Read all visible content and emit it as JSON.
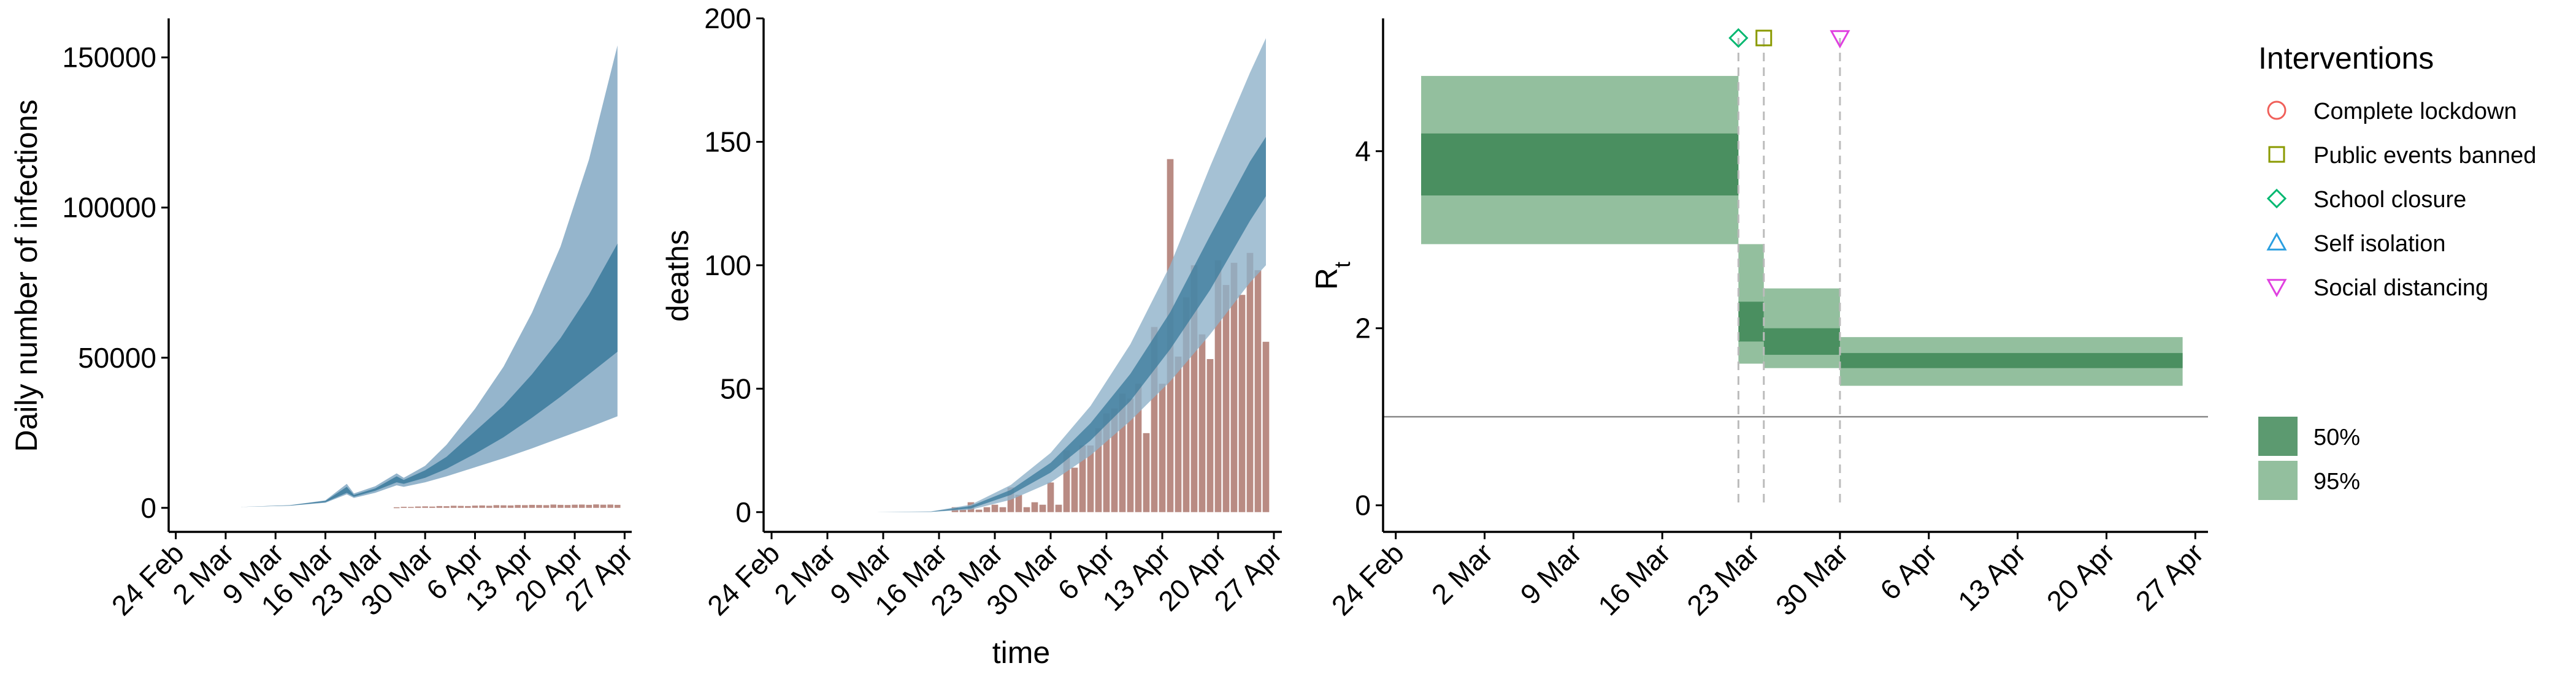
{
  "chart_data": [
    {
      "type": "area",
      "title": "",
      "xlabel": "",
      "ylabel": "Daily number of infections",
      "x_tick_labels": [
        "24 Feb",
        "2 Mar",
        "9 Mar",
        "16 Mar",
        "23 Mar",
        "30 Mar",
        "6 Apr",
        "13 Apr",
        "20 Apr",
        "27 Apr"
      ],
      "xlim_days": [
        -1,
        64
      ],
      "y_ticks": [
        0,
        50000,
        100000,
        150000
      ],
      "y_tick_labels": [
        "0",
        "50000",
        "100000",
        "150000"
      ],
      "ylim": [
        -8000,
        163000
      ],
      "colors": {
        "band_95": "#8fb1c9",
        "band_50": "#3f7d9e",
        "reported_bars": "#b5857c",
        "axis": "#000000"
      },
      "series": [
        {
          "kind": "band",
          "x_days": [
            2,
            9,
            16,
            21,
            24,
            25,
            28,
            31,
            32,
            35,
            38,
            42,
            46,
            50,
            54,
            58,
            62
          ],
          "lower_95": [
            0,
            300,
            700,
            1700,
            4500,
            3300,
            5000,
            7500,
            7000,
            8500,
            10500,
            13500,
            16500,
            19800,
            23300,
            26800,
            30500
          ],
          "upper_95": [
            0,
            300,
            900,
            2500,
            8000,
            4800,
            7200,
            11500,
            10000,
            14000,
            21000,
            33000,
            47000,
            65000,
            87000,
            116000,
            154000
          ],
          "lower_50": [
            0,
            300,
            750,
            1900,
            5000,
            3700,
            5700,
            8500,
            8000,
            10000,
            13000,
            18000,
            23500,
            30000,
            37000,
            44500,
            52000
          ],
          "upper_50": [
            0,
            300,
            850,
            2300,
            7000,
            4300,
            6500,
            10500,
            9300,
            12500,
            17000,
            25500,
            34000,
            44500,
            56500,
            71000,
            88000
          ]
        },
        {
          "kind": "bars",
          "name": "",
          "x_days": [
            31,
            32,
            33,
            34,
            35,
            36,
            37,
            38,
            39,
            40,
            41,
            42,
            43,
            44,
            45,
            46,
            47,
            48,
            49,
            50,
            51,
            52,
            53,
            54,
            55,
            56,
            57,
            58,
            59,
            60,
            61,
            62
          ],
          "values": [
            200,
            350,
            300,
            450,
            500,
            420,
            600,
            550,
            700,
            650,
            600,
            750,
            800,
            700,
            900,
            850,
            800,
            950,
            900,
            1000,
            950,
            900,
            1100,
            1000,
            950,
            1050,
            1100,
            1000,
            1150,
            1050,
            1100,
            1000
          ]
        }
      ]
    },
    {
      "type": "bar",
      "title": "",
      "xlabel": "time",
      "ylabel": "deaths",
      "x_tick_labels": [
        "24 Feb",
        "2 Mar",
        "9 Mar",
        "16 Mar",
        "23 Mar",
        "30 Mar",
        "6 Apr",
        "13 Apr",
        "20 Apr",
        "27 Apr"
      ],
      "xlim_days": [
        -1,
        64
      ],
      "y_ticks": [
        0,
        50,
        100,
        150,
        200
      ],
      "y_tick_labels": [
        "0",
        "50",
        "100",
        "150",
        "200"
      ],
      "ylim": [
        -8,
        200
      ],
      "colors": {
        "band_95": "#8fb1c9",
        "band_50": "#3f7d9e",
        "bars": "#b5857c"
      },
      "series": [
        {
          "kind": "bars",
          "name": "",
          "x_days": [
            23,
            24,
            25,
            26,
            27,
            28,
            29,
            30,
            31,
            32,
            33,
            34,
            35,
            36,
            37,
            38,
            39,
            40,
            41,
            42,
            43,
            44,
            45,
            46,
            47,
            48,
            49,
            50,
            51,
            52,
            53,
            54,
            55,
            56,
            57,
            58,
            59,
            60,
            61,
            62
          ],
          "values": [
            2,
            1,
            4,
            1,
            2,
            3,
            2,
            10,
            7,
            2,
            4,
            3,
            12,
            3,
            25,
            18,
            27,
            27,
            34,
            40,
            42,
            48,
            46,
            52,
            32,
            75,
            52,
            143,
            63,
            87,
            100,
            72,
            62,
            102,
            92,
            101,
            88,
            105,
            98,
            69
          ]
        },
        {
          "kind": "band",
          "x_days": [
            6,
            13,
            20,
            25,
            30,
            35,
            40,
            45,
            50,
            55,
            60,
            62
          ],
          "lower_95": [
            0,
            0,
            0.1,
            1,
            5,
            12,
            23,
            37,
            53,
            72,
            93,
            100
          ],
          "upper_95": [
            0,
            0,
            0.3,
            3,
            11,
            24,
            43,
            68,
            100,
            140,
            178,
            192
          ],
          "lower_50": [
            0,
            0,
            0.1,
            1.5,
            7,
            16,
            29,
            45,
            66,
            90,
            118,
            128
          ],
          "upper_50": [
            0,
            0,
            0.2,
            2.5,
            9,
            20,
            36,
            56,
            81,
            112,
            142,
            152
          ]
        }
      ]
    },
    {
      "type": "area",
      "title": "",
      "xlabel": "",
      "ylabel": "R",
      "ylabel_subscript": "t",
      "x_tick_labels": [
        "24 Feb",
        "2 Mar",
        "9 Mar",
        "16 Mar",
        "23 Mar",
        "30 Mar",
        "6 Apr",
        "13 Apr",
        "20 Apr",
        "27 Apr"
      ],
      "xlim_days": [
        -1,
        64
      ],
      "y_ticks": [
        0,
        2,
        4
      ],
      "y_tick_labels": [
        "0",
        "2",
        "4"
      ],
      "ylim": [
        -0.3,
        5.5
      ],
      "reference_line_y": 1,
      "colors": {
        "band_95": "#93bf9e",
        "band_50": "#4a8f60",
        "reference_line": "#888888",
        "intervention_line": "#bbbbbb"
      },
      "segments": [
        {
          "start_day": 2,
          "end_day": 27,
          "lower_95": 2.95,
          "upper_95": 4.85,
          "lower_50": 3.5,
          "upper_50": 4.2
        },
        {
          "start_day": 27,
          "end_day": 29,
          "lower_95": 1.6,
          "upper_95": 2.95,
          "lower_50": 1.85,
          "upper_50": 2.3
        },
        {
          "start_day": 29,
          "end_day": 35,
          "lower_95": 1.55,
          "upper_95": 2.45,
          "lower_50": 1.7,
          "upper_50": 2.0
        },
        {
          "start_day": 35,
          "end_day": 62,
          "lower_95": 1.35,
          "upper_95": 1.9,
          "lower_50": 1.55,
          "upper_50": 1.72
        }
      ],
      "interventions_on_chart": [
        {
          "name": "School closure",
          "day": 27,
          "shape": "diamond",
          "color": "#00b870"
        },
        {
          "name": "Public events banned",
          "day": 29,
          "shape": "square",
          "color": "#8a9a00"
        },
        {
          "name": "Social distancing",
          "day": 35,
          "shape": "triangle-down",
          "color": "#e040e0"
        }
      ],
      "legend": {
        "title": "Interventions",
        "placement": "right",
        "items": [
          {
            "label": "Complete lockdown",
            "shape": "circle",
            "color": "#f0605a"
          },
          {
            "label": "Public events banned",
            "shape": "square",
            "color": "#8a9a00"
          },
          {
            "label": "School closure",
            "shape": "diamond",
            "color": "#00b870"
          },
          {
            "label": "Self isolation",
            "shape": "triangle-up",
            "color": "#2a9fe0"
          },
          {
            "label": "Social distancing",
            "shape": "triangle-down",
            "color": "#e040e0"
          }
        ],
        "fill_items": [
          {
            "label": "50%",
            "color": "#4a8f60",
            "opacity": 0.9
          },
          {
            "label": "95%",
            "color": "#93bf9e",
            "opacity": 1
          }
        ]
      }
    }
  ]
}
